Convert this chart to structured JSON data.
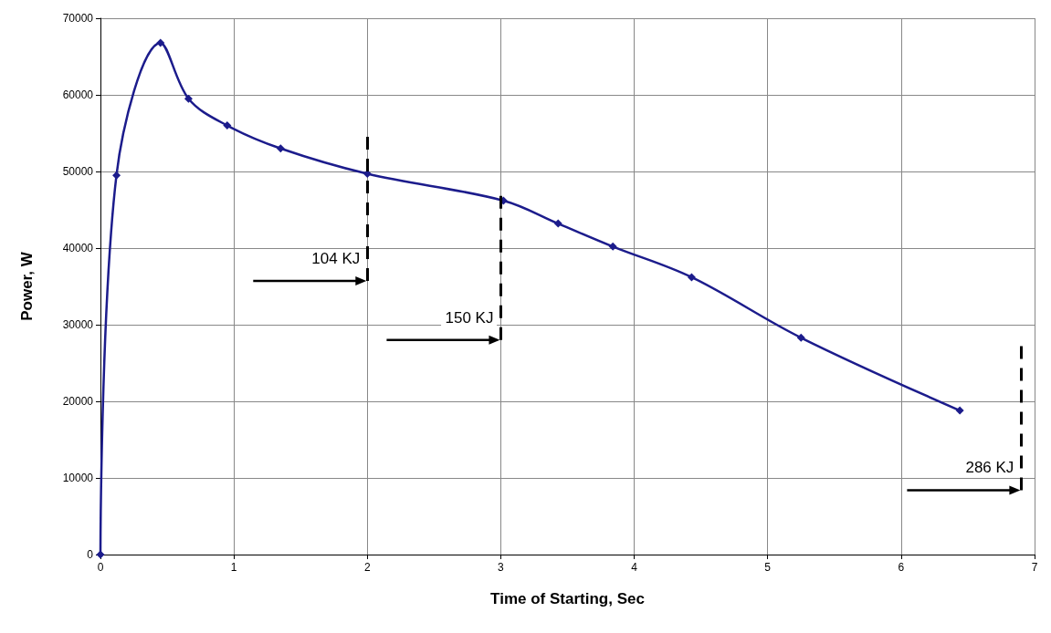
{
  "chart_data": {
    "type": "line",
    "xlabel": "Time of Starting, Sec",
    "ylabel": "Power, W",
    "x": [
      0,
      0.12,
      0.45,
      0.66,
      0.95,
      1.35,
      2.0,
      3.02,
      3.43,
      3.84,
      4.43,
      5.25,
      6.44
    ],
    "series": [
      {
        "color": "#1c1c8c",
        "values": [
          0,
          49500,
          66800,
          59500,
          56000,
          53000,
          49700,
          46200,
          43200,
          40200,
          36200,
          28300,
          18800
        ]
      }
    ],
    "xlim": [
      0,
      7
    ],
    "xticks": [
      0,
      1,
      2,
      3,
      4,
      5,
      6,
      7
    ],
    "ylim": [
      0,
      70000
    ],
    "yticks": [
      0,
      10000,
      20000,
      30000,
      40000,
      50000,
      60000,
      70000
    ],
    "grid": true,
    "marker": "diamond",
    "line_style": "solid",
    "ref_lines": [
      {
        "axis": "x",
        "value": 2,
        "label": "104 KJ",
        "color": "#000000",
        "line_style": "dashed"
      },
      {
        "axis": "x",
        "value": 3,
        "label": "150 KJ",
        "color": "#000000",
        "line_style": "dashed"
      },
      {
        "axis": "x",
        "value": 6.9,
        "label": "286 KJ",
        "color": "#000000",
        "line_style": "dashed"
      }
    ]
  }
}
